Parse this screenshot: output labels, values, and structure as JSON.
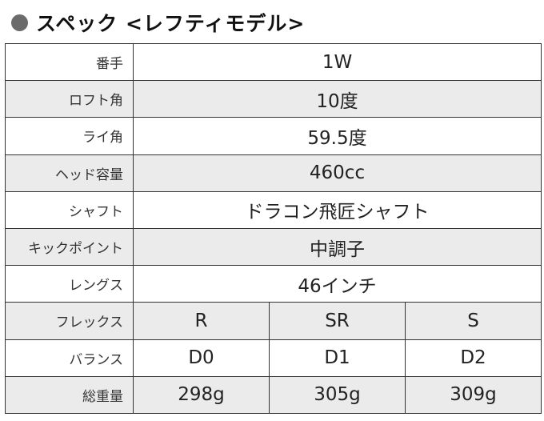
{
  "title": "スペック <レフティモデル>",
  "colors": {
    "bullet": "#6b6b6b",
    "row_shade": "#ebebeb",
    "border": "#333333"
  },
  "spec_rows": [
    {
      "label": "番手",
      "value": "1W"
    },
    {
      "label": "ロフト角",
      "value": "10度"
    },
    {
      "label": "ライ角",
      "value": "59.5度"
    },
    {
      "label": "ヘッド容量",
      "value": "460cc"
    },
    {
      "label": "シャフト",
      "value": "ドラコン飛匠シャフト"
    },
    {
      "label": "キックポイント",
      "value": "中調子"
    },
    {
      "label": "レングス",
      "value": "46インチ"
    }
  ],
  "flex_rows": [
    {
      "label": "フレックス",
      "values": [
        "R",
        "SR",
        "S"
      ]
    },
    {
      "label": "バランス",
      "values": [
        "D0",
        "D1",
        "D2"
      ]
    },
    {
      "label": "総重量",
      "values": [
        "298g",
        "305g",
        "309g"
      ]
    }
  ]
}
